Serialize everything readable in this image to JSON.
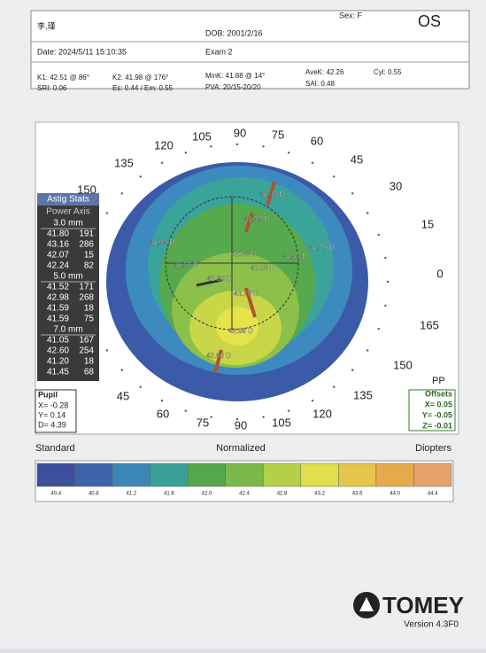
{
  "header": {
    "name": "李,瑾",
    "sex": "Sex: F",
    "eye": "OS",
    "dob": "DOB: 2001/2/16",
    "date": "Date: 2024/5/11 15:10:35",
    "exam": "Exam 2"
  },
  "indices": [
    "K1: 42.51 @ 86°",
    "SRI: 0.06",
    "K2: 41.98 @ 176°",
    "Es: 0.44 / Em: 0.55",
    "MinK: 41.88 @ 14°",
    "PVA: 20/15-20/20",
    "AveK: 42.26",
    "SAI: 0.48",
    "Cyl: 0.55"
  ],
  "map": {
    "angles": [
      "105",
      "90",
      "75",
      "120",
      "60",
      "135",
      "45",
      "150",
      "30",
      "15",
      "0",
      "165",
      "150",
      "135",
      "120",
      "105",
      "90",
      "75",
      "60",
      "45"
    ],
    "points": [
      "41.45 D",
      "41.59 D",
      "41.05 D",
      "41.20 D",
      "42.24 D",
      "41.59 D",
      "41.52 D",
      "42.07 D",
      "41.80 D",
      "43.16 D",
      "42.98 D",
      "42.60 D"
    ],
    "pp": "PP"
  },
  "astig": {
    "title": "Astig Stats",
    "header": "Power  Axis",
    "sections": [
      {
        "label": "3.0 mm",
        "rows": [
          [
            "41.80",
            "191"
          ],
          [
            "43.16",
            "286"
          ],
          [
            "42.07",
            "15"
          ],
          [
            "42.24",
            "82"
          ]
        ]
      },
      {
        "label": "5.0 mm",
        "rows": [
          [
            "41.52",
            "171"
          ],
          [
            "42.98",
            "268"
          ],
          [
            "41.59",
            "18"
          ],
          [
            "41.59",
            "75"
          ]
        ]
      },
      {
        "label": "7.0 mm",
        "rows": [
          [
            "41.05",
            "167"
          ],
          [
            "42.60",
            "254"
          ],
          [
            "41.20",
            "18"
          ],
          [
            "41.45",
            "68"
          ]
        ]
      }
    ]
  },
  "pupil": {
    "title": "Pupil",
    "lines": [
      "X= -0.28",
      "Y= 0.14",
      "D= 4.39"
    ]
  },
  "offsets": {
    "title": "Offsets",
    "lines": [
      "X= 0.05",
      "Y= -0.05",
      "Z= -0.01"
    ]
  },
  "scale": {
    "left": "Standard",
    "center": "Normalized",
    "right": "Diopters",
    "values": [
      "40.4",
      "40.8",
      "41.2",
      "41.6",
      "42.0",
      "42.4",
      "42.8",
      "43.2",
      "43.6",
      "44.0",
      "44.4"
    ]
  },
  "footer": {
    "brand": "TOMEY",
    "version": "Version 4.3F0"
  }
}
